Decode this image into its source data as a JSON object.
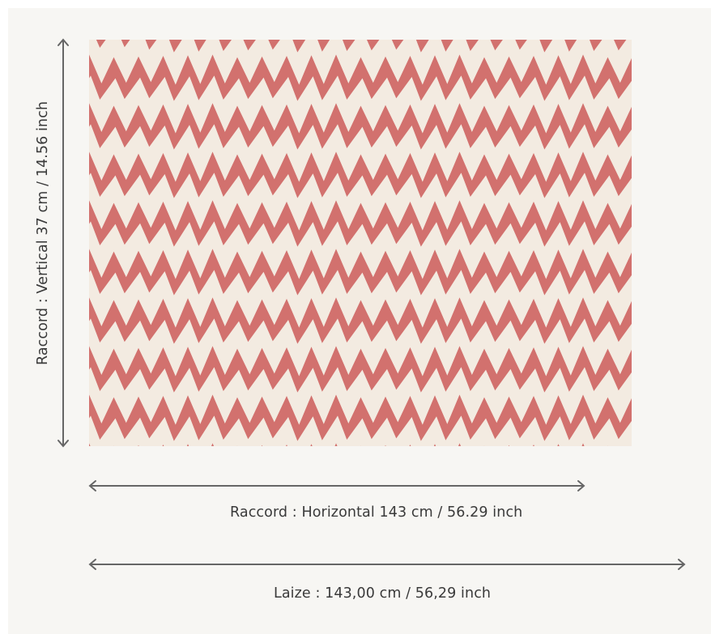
{
  "swatch": {
    "primary_color": "#d2716e",
    "background_color": "#f3ebe1",
    "pattern": "zigzag-chevron"
  },
  "vertical_repeat": {
    "label": "Raccord : Vertical 37 cm / 14.56 inch"
  },
  "horizontal_repeat": {
    "label": "Raccord : Horizontal 143 cm / 56.29 inch"
  },
  "width": {
    "label": "Laize : 143,00 cm / 56,29 inch"
  },
  "colors": {
    "arrow": "#666666",
    "text": "#3a3a3a",
    "panel": "#f7f6f3"
  }
}
